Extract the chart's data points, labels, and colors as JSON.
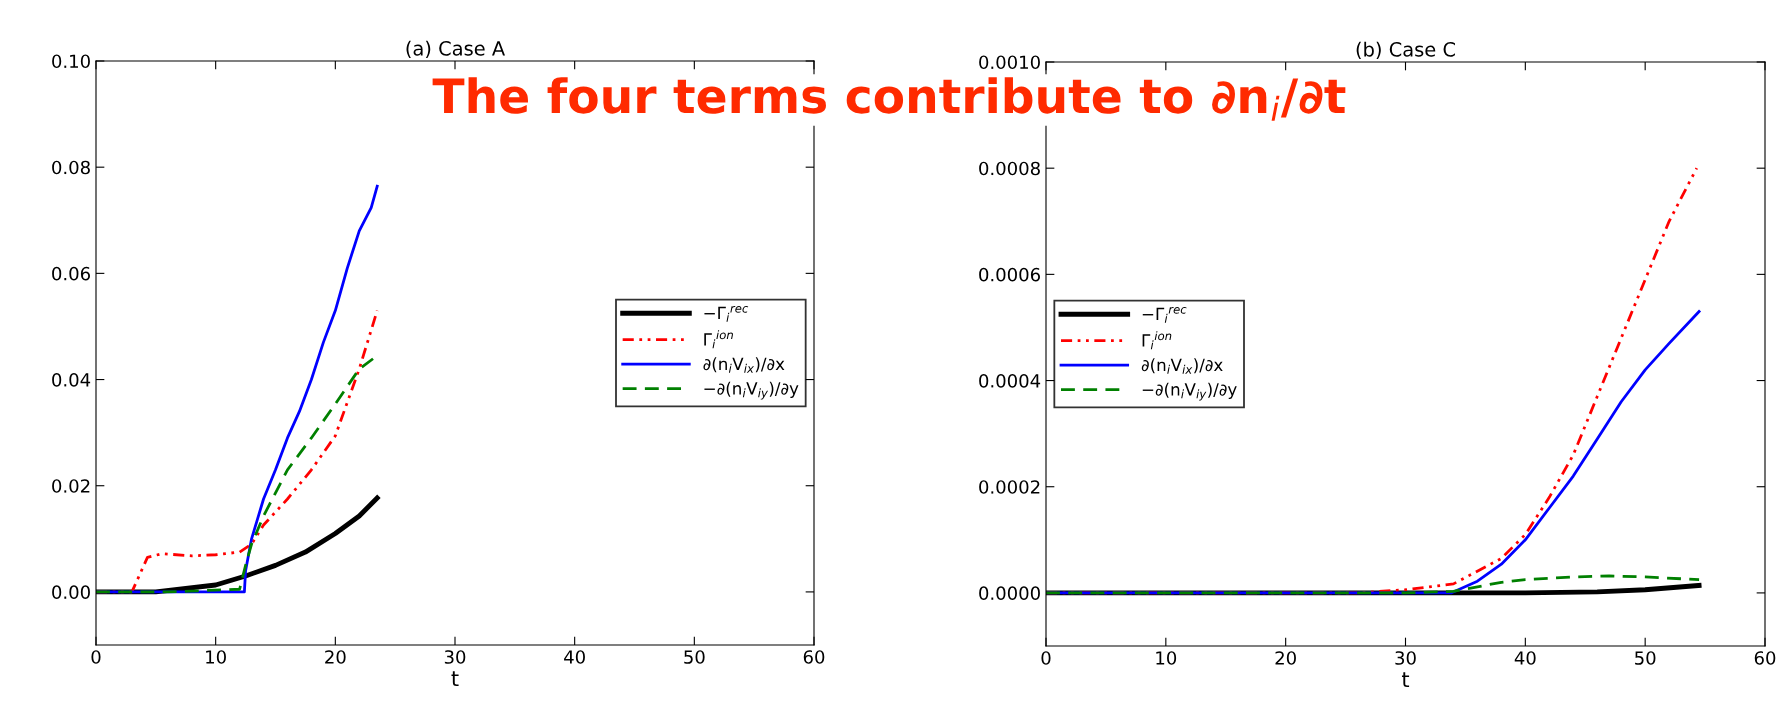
{
  "chart_data": [
    {
      "type": "line",
      "title": "(a) Case A",
      "xlabel": "t",
      "xlim": [
        0,
        60
      ],
      "xticks": [
        0,
        10,
        20,
        30,
        40,
        50,
        60
      ],
      "ylim": [
        -0.01,
        0.1
      ],
      "yticks": [
        {
          "value": 0,
          "label": "0.00"
        },
        {
          "value": 0.02,
          "label": "0.02"
        },
        {
          "value": 0.04,
          "label": "0.04"
        },
        {
          "value": 0.06,
          "label": "0.06"
        },
        {
          "value": 0.08,
          "label": "0.08"
        },
        {
          "value": 0.1,
          "label": "0.10"
        }
      ],
      "grid": false,
      "legend": "center right",
      "annotations": [
        "The four terms contribute to ∂n$_{i}$/∂t"
      ],
      "series": [
        {
          "name": "−Γ$_{i}$$^{rec}$",
          "color": "#000000",
          "line_style": "solid",
          "x": [
            0,
            5,
            10,
            12.5,
            15,
            17.5,
            20,
            22,
            23.5
          ],
          "values": [
            0,
            0,
            0.0013,
            0.003,
            0.005,
            0.0075,
            0.011,
            0.0143,
            0.0177
          ]
        },
        {
          "name": "Γ$_{i}$$^{ion}$",
          "color": "#ff0000",
          "line_style": "dashdot",
          "x": [
            0,
            3,
            4.3,
            5.5,
            8,
            10,
            12,
            13,
            14,
            16,
            18,
            20,
            22,
            23.5
          ],
          "values": [
            0,
            0,
            0.0065,
            0.0072,
            0.0068,
            0.007,
            0.0075,
            0.009,
            0.0126,
            0.0175,
            0.023,
            0.0294,
            0.042,
            0.053
          ]
        },
        {
          "name": "∂(n$_{i}$V$_{ix}$)/∂x",
          "color": "#0000ff",
          "line_style": "solid",
          "x": [
            0,
            12.4,
            12.5,
            13,
            14,
            15,
            16,
            17,
            18,
            19,
            20,
            21,
            22,
            23,
            23.5
          ],
          "values": [
            0,
            0,
            0.004,
            0.01,
            0.0175,
            0.023,
            0.029,
            0.034,
            0.04,
            0.047,
            0.053,
            0.061,
            0.068,
            0.0724,
            0.0764
          ]
        },
        {
          "name": "−∂(n$_{i}$V$_{iy}$)/∂y",
          "color": "#008000",
          "line_style": "dashed",
          "x": [
            0,
            6,
            12,
            12.5,
            13,
            14,
            16,
            18,
            20,
            22,
            23.5
          ],
          "values": [
            0,
            0,
            0.0005,
            0.005,
            0.009,
            0.0143,
            0.023,
            0.029,
            0.0354,
            0.042,
            0.0445
          ]
        }
      ]
    },
    {
      "type": "line",
      "title": "(b) Case C",
      "xlabel": "t",
      "xlim": [
        0,
        60
      ],
      "xticks": [
        0,
        10,
        20,
        30,
        40,
        50,
        60
      ],
      "ylim": [
        -0.0001,
        0.001
      ],
      "yticks": [
        {
          "value": 0,
          "label": "0.0000"
        },
        {
          "value": 0.0002,
          "label": "0.0002"
        },
        {
          "value": 0.0004,
          "label": "0.0004"
        },
        {
          "value": 0.0006,
          "label": "0.0006"
        },
        {
          "value": 0.0008,
          "label": "0.0008"
        },
        {
          "value": 0.001,
          "label": "0.0010"
        }
      ],
      "grid": false,
      "legend": "center left",
      "series": [
        {
          "name": "−Γ$_{i}$$^{rec}$",
          "color": "#000000",
          "line_style": "solid",
          "x": [
            0,
            40,
            46,
            50,
            54.5
          ],
          "values": [
            0,
            0,
            2e-06,
            6e-06,
            1.4e-05
          ]
        },
        {
          "name": "Γ$_{i}$$^{ion}$",
          "color": "#ff0000",
          "line_style": "dashdot",
          "x": [
            0,
            26,
            30,
            34,
            38,
            40,
            42,
            44,
            46,
            48,
            50,
            52,
            54.3
          ],
          "values": [
            0,
            0,
            6e-06,
            1.7e-05,
            6.5e-05,
            0.00011,
            0.00018,
            0.00026,
            0.00037,
            0.00048,
            0.00059,
            0.0007,
            0.0008
          ]
        },
        {
          "name": "∂(n$_{i}$V$_{ix}$)/∂x",
          "color": "#0000ff",
          "line_style": "solid",
          "x": [
            0,
            33.8,
            36,
            38,
            40,
            42,
            44,
            46,
            48,
            50,
            52,
            54.5
          ],
          "values": [
            0,
            0,
            2.2e-05,
            5.4e-05,
            0.0001,
            0.00016,
            0.00022,
            0.00029,
            0.00036,
            0.00042,
            0.00047,
            0.00053
          ]
        },
        {
          "name": "−∂(n$_{i}$V$_{iy}$)/∂y",
          "color": "#008000",
          "line_style": "dashed",
          "x": [
            0,
            30,
            34,
            38,
            40,
            44,
            47,
            50,
            54.5
          ],
          "values": [
            0,
            0,
            3e-06,
            2e-05,
            2.5e-05,
            3e-05,
            3.2e-05,
            3e-05,
            2.5e-05
          ]
        }
      ]
    }
  ]
}
